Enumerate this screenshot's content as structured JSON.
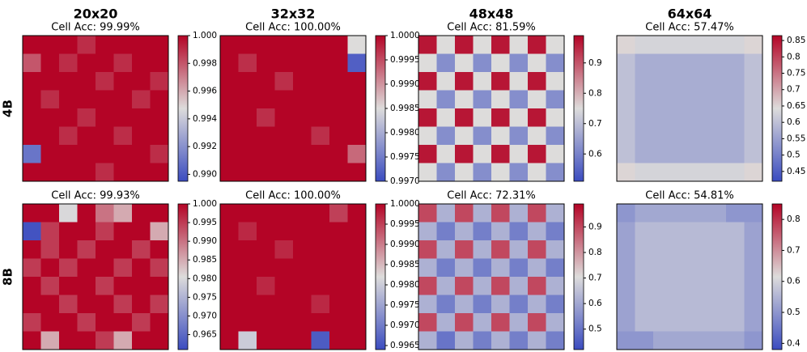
{
  "column_titles": [
    "20x20",
    "32x32",
    "48x48",
    "64x64"
  ],
  "row_labels": [
    "4B",
    "8B"
  ],
  "chart_data": [
    {
      "type": "heatmap",
      "title": "Cell Acc: 99.99%",
      "colormap": "coolwarm",
      "clim": [
        0.9895,
        1.0
      ],
      "cticks": [
        {
          "value": 1.0,
          "label": "1.000"
        },
        0.998,
        0.996,
        0.994,
        0.992,
        {
          "value": 0.99,
          "label": "0.990"
        }
      ],
      "values": [
        [
          1,
          1,
          1,
          0.999,
          1,
          1,
          1,
          1
        ],
        [
          0.998,
          1,
          0.999,
          1,
          1,
          0.999,
          1,
          1
        ],
        [
          1,
          1,
          1,
          1,
          0.999,
          1,
          1,
          0.999
        ],
        [
          1,
          0.999,
          1,
          1,
          1,
          1,
          0.999,
          1
        ],
        [
          1,
          1,
          1,
          0.999,
          1,
          1,
          1,
          1
        ],
        [
          1,
          1,
          0.999,
          1,
          1,
          0.999,
          1,
          1
        ],
        [
          0.991,
          1,
          1,
          1,
          1,
          1,
          1,
          0.999
        ],
        [
          1,
          1,
          1,
          1,
          0.999,
          1,
          1,
          1
        ]
      ]
    },
    {
      "type": "heatmap",
      "title": "Cell Acc: 100.00%",
      "colormap": "coolwarm",
      "clim": [
        0.997,
        1.0
      ],
      "cticks": [
        {
          "value": 1.0,
          "label": "1.0000"
        },
        0.9995,
        {
          "value": 0.999,
          "label": "0.9990"
        },
        0.9985,
        {
          "value": 0.998,
          "label": "0.9980"
        },
        0.9975,
        {
          "value": 0.997,
          "label": "0.9970"
        }
      ],
      "values": [
        [
          1,
          1,
          1,
          1,
          1,
          1,
          1,
          0.9985
        ],
        [
          1,
          0.9997,
          1,
          1,
          1,
          1,
          1,
          0.9972
        ],
        [
          1,
          1,
          1,
          0.9997,
          1,
          1,
          1,
          1
        ],
        [
          1,
          1,
          1,
          1,
          1,
          1,
          1,
          1
        ],
        [
          1,
          1,
          0.9997,
          1,
          1,
          1,
          1,
          1
        ],
        [
          1,
          1,
          1,
          1,
          1,
          0.9997,
          1,
          1
        ],
        [
          1,
          1,
          1,
          1,
          1,
          1,
          1,
          0.9993
        ],
        [
          1,
          1,
          1,
          1,
          1,
          1,
          1,
          1
        ]
      ]
    },
    {
      "type": "heatmap",
      "title": "Cell Acc: 81.59%",
      "colormap": "coolwarm",
      "clim": [
        0.51,
        0.99
      ],
      "cticks": [
        0.6,
        0.7,
        0.8,
        0.9
      ],
      "values": [
        [
          0.97,
          0.75,
          0.97,
          0.75,
          0.97,
          0.75,
          0.97,
          0.75
        ],
        [
          0.75,
          0.62,
          0.75,
          0.62,
          0.75,
          0.62,
          0.75,
          0.62
        ],
        [
          0.97,
          0.75,
          0.97,
          0.75,
          0.97,
          0.75,
          0.97,
          0.75
        ],
        [
          0.75,
          0.62,
          0.75,
          0.62,
          0.75,
          0.62,
          0.75,
          0.62
        ],
        [
          0.97,
          0.75,
          0.97,
          0.75,
          0.97,
          0.75,
          0.97,
          0.75
        ],
        [
          0.75,
          0.62,
          0.75,
          0.62,
          0.75,
          0.62,
          0.75,
          0.62
        ],
        [
          0.97,
          0.75,
          0.97,
          0.75,
          0.97,
          0.75,
          0.97,
          0.75
        ],
        [
          0.75,
          0.62,
          0.75,
          0.62,
          0.75,
          0.62,
          0.75,
          0.62
        ]
      ]
    },
    {
      "type": "heatmap",
      "title": "Cell Acc: 57.47%",
      "colormap": "coolwarm",
      "clim": [
        0.42,
        0.865
      ],
      "cticks": [
        0.45,
        0.5,
        0.55,
        0.6,
        0.65,
        0.7,
        0.75,
        0.8,
        0.85
      ],
      "values": [
        [
          0.65,
          0.63,
          0.63,
          0.63,
          0.63,
          0.63,
          0.63,
          0.65
        ],
        [
          0.6,
          0.57,
          0.57,
          0.57,
          0.57,
          0.57,
          0.57,
          0.6
        ],
        [
          0.6,
          0.57,
          0.57,
          0.57,
          0.57,
          0.57,
          0.57,
          0.6
        ],
        [
          0.6,
          0.57,
          0.57,
          0.57,
          0.57,
          0.57,
          0.57,
          0.6
        ],
        [
          0.6,
          0.57,
          0.57,
          0.57,
          0.57,
          0.57,
          0.57,
          0.6
        ],
        [
          0.6,
          0.57,
          0.57,
          0.57,
          0.57,
          0.57,
          0.57,
          0.6
        ],
        [
          0.6,
          0.57,
          0.57,
          0.57,
          0.57,
          0.57,
          0.57,
          0.6
        ],
        [
          0.65,
          0.63,
          0.63,
          0.63,
          0.63,
          0.63,
          0.63,
          0.65
        ]
      ]
    },
    {
      "type": "heatmap",
      "title": "Cell Acc: 99.93%",
      "colormap": "coolwarm",
      "clim": [
        0.961,
        1.0
      ],
      "cticks": [
        {
          "value": 1.0,
          "label": "1.000"
        },
        0.995,
        {
          "value": 0.99,
          "label": "0.990"
        },
        0.985,
        {
          "value": 0.98,
          "label": "0.980"
        },
        0.975,
        {
          "value": 0.97,
          "label": "0.970"
        },
        0.965
      ],
      "values": [
        [
          1,
          1,
          0.98,
          1,
          0.99,
          0.985,
          1,
          1
        ],
        [
          0.962,
          0.995,
          1,
          1,
          0.995,
          1,
          1,
          0.985
        ],
        [
          1,
          0.995,
          1,
          0.995,
          1,
          1,
          0.995,
          1
        ],
        [
          0.995,
          1,
          0.995,
          1,
          1,
          0.995,
          1,
          0.995
        ],
        [
          1,
          0.995,
          1,
          1,
          0.995,
          1,
          1,
          1
        ],
        [
          1,
          1,
          0.995,
          1,
          1,
          0.995,
          1,
          0.995
        ],
        [
          0.995,
          1,
          1,
          0.995,
          1,
          1,
          0.995,
          1
        ],
        [
          1,
          0.985,
          1,
          1,
          0.995,
          0.985,
          1,
          1
        ]
      ]
    },
    {
      "type": "heatmap",
      "title": "Cell Acc: 100.00%",
      "colormap": "coolwarm",
      "clim": [
        0.9964,
        1.0
      ],
      "cticks": [
        {
          "value": 1.0,
          "label": "1.0000"
        },
        0.9995,
        {
          "value": 0.999,
          "label": "0.9990"
        },
        0.9985,
        {
          "value": 0.998,
          "label": "0.9980"
        },
        0.9975,
        {
          "value": 0.997,
          "label": "0.9970"
        },
        0.9965
      ],
      "values": [
        [
          1,
          1,
          1,
          1,
          1,
          1,
          0.9995,
          1
        ],
        [
          1,
          0.9997,
          1,
          1,
          1,
          1,
          1,
          1
        ],
        [
          1,
          1,
          1,
          0.9997,
          1,
          1,
          1,
          1
        ],
        [
          1,
          1,
          1,
          1,
          1,
          1,
          1,
          1
        ],
        [
          1,
          1,
          0.9997,
          1,
          1,
          1,
          1,
          1
        ],
        [
          1,
          1,
          1,
          1,
          1,
          0.9997,
          1,
          1
        ],
        [
          1,
          1,
          1,
          1,
          1,
          1,
          1,
          1
        ],
        [
          1,
          0.998,
          1,
          1,
          1,
          0.9966,
          1,
          1
        ]
      ]
    },
    {
      "type": "heatmap",
      "title": "Cell Acc: 72.31%",
      "colormap": "coolwarm",
      "clim": [
        0.42,
        0.99
      ],
      "cticks": [
        0.5,
        0.6,
        0.7,
        0.8,
        0.9
      ],
      "values": [
        [
          0.9,
          0.62,
          0.9,
          0.62,
          0.9,
          0.62,
          0.9,
          0.62
        ],
        [
          0.62,
          0.52,
          0.62,
          0.52,
          0.62,
          0.52,
          0.62,
          0.52
        ],
        [
          0.9,
          0.62,
          0.9,
          0.62,
          0.9,
          0.62,
          0.9,
          0.62
        ],
        [
          0.62,
          0.52,
          0.62,
          0.52,
          0.62,
          0.52,
          0.62,
          0.52
        ],
        [
          0.9,
          0.62,
          0.9,
          0.62,
          0.9,
          0.62,
          0.9,
          0.62
        ],
        [
          0.62,
          0.52,
          0.62,
          0.52,
          0.62,
          0.52,
          0.62,
          0.52
        ],
        [
          0.9,
          0.62,
          0.9,
          0.62,
          0.9,
          0.62,
          0.9,
          0.62
        ],
        [
          0.62,
          0.5,
          0.62,
          0.52,
          0.62,
          0.52,
          0.62,
          0.52
        ]
      ]
    },
    {
      "type": "heatmap",
      "title": "Cell Acc: 54.81%",
      "colormap": "coolwarm",
      "clim": [
        0.38,
        0.85
      ],
      "cticks": [
        0.4,
        0.5,
        0.6,
        0.7,
        0.8
      ],
      "values": [
        [
          0.5,
          0.53,
          0.53,
          0.53,
          0.53,
          0.53,
          0.5,
          0.5
        ],
        [
          0.52,
          0.56,
          0.56,
          0.56,
          0.56,
          0.56,
          0.56,
          0.52
        ],
        [
          0.52,
          0.56,
          0.56,
          0.56,
          0.56,
          0.56,
          0.56,
          0.52
        ],
        [
          0.52,
          0.56,
          0.56,
          0.56,
          0.56,
          0.56,
          0.56,
          0.52
        ],
        [
          0.52,
          0.56,
          0.56,
          0.56,
          0.56,
          0.56,
          0.56,
          0.52
        ],
        [
          0.52,
          0.56,
          0.56,
          0.56,
          0.56,
          0.56,
          0.56,
          0.52
        ],
        [
          0.52,
          0.56,
          0.56,
          0.56,
          0.56,
          0.56,
          0.56,
          0.52
        ],
        [
          0.5,
          0.5,
          0.53,
          0.53,
          0.53,
          0.53,
          0.53,
          0.5
        ]
      ]
    }
  ]
}
